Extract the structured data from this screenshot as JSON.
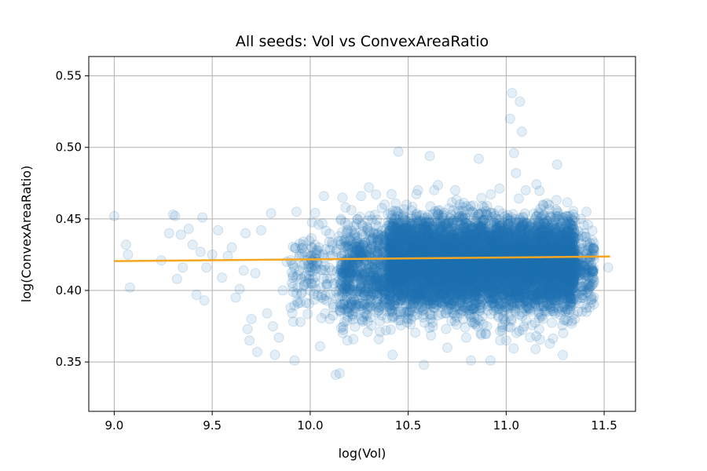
{
  "chart_data": {
    "type": "scatter",
    "title": "All seeds: Vol vs ConvexAreaRatio",
    "xlabel": "log(Vol)",
    "ylabel": "log(ConvexAreaRatio)",
    "xlim": [
      8.87,
      11.66
    ],
    "ylim": [
      0.3155,
      0.5635
    ],
    "xticks": [
      "9.0",
      "9.5",
      "10.0",
      "10.5",
      "11.0",
      "11.5"
    ],
    "yticks": [
      "0.35",
      "0.40",
      "0.45",
      "0.50",
      "0.55"
    ],
    "grid": true,
    "point_color": "#1f77b4",
    "point_alpha": 0.12,
    "fit_line_color": "#f5a623",
    "fit_line": {
      "x": [
        9.0,
        11.53
      ],
      "y": [
        0.4205,
        0.4237
      ]
    },
    "series": [
      {
        "type": "scatter",
        "points": [
          [
            9.0,
            0.452
          ],
          [
            9.06,
            0.432
          ],
          [
            9.07,
            0.425
          ],
          [
            9.08,
            0.402
          ],
          [
            9.24,
            0.421
          ],
          [
            9.28,
            0.44
          ],
          [
            9.3,
            0.453
          ],
          [
            9.31,
            0.452
          ],
          [
            9.32,
            0.408
          ],
          [
            9.34,
            0.439
          ],
          [
            9.35,
            0.416
          ],
          [
            9.38,
            0.443
          ],
          [
            9.4,
            0.432
          ],
          [
            9.42,
            0.397
          ],
          [
            9.44,
            0.427
          ],
          [
            9.45,
            0.451
          ],
          [
            9.46,
            0.393
          ],
          [
            9.47,
            0.416
          ],
          [
            9.5,
            0.425
          ],
          [
            9.53,
            0.442
          ],
          [
            9.55,
            0.409
          ],
          [
            9.58,
            0.424
          ],
          [
            9.6,
            0.43
          ],
          [
            9.62,
            0.395
          ],
          [
            9.64,
            0.401
          ],
          [
            9.66,
            0.414
          ],
          [
            9.67,
            0.44
          ],
          [
            9.68,
            0.373
          ],
          [
            9.69,
            0.365
          ],
          [
            9.7,
            0.38
          ],
          [
            9.72,
            0.412
          ],
          [
            9.73,
            0.357
          ],
          [
            9.75,
            0.442
          ],
          [
            9.78,
            0.384
          ],
          [
            9.8,
            0.454
          ],
          [
            9.81,
            0.375
          ],
          [
            9.82,
            0.355
          ],
          [
            9.84,
            0.367
          ],
          [
            9.86,
            0.4
          ],
          [
            9.88,
            0.42
          ],
          [
            9.9,
            0.388
          ],
          [
            9.92,
            0.351
          ],
          [
            9.93,
            0.455
          ],
          [
            9.95,
            0.378
          ],
          [
            9.97,
            0.41
          ],
          [
            10.0,
            0.4
          ],
          [
            10.03,
            0.428
          ],
          [
            10.05,
            0.361
          ],
          [
            10.07,
            0.466
          ],
          [
            10.1,
            0.38
          ],
          [
            10.13,
            0.341
          ],
          [
            10.15,
            0.342
          ],
          [
            10.18,
            0.458
          ],
          [
            10.2,
            0.4
          ],
          [
            10.22,
            0.366
          ],
          [
            10.26,
            0.466
          ],
          [
            10.3,
            0.472
          ],
          [
            10.35,
            0.366
          ],
          [
            10.38,
            0.46
          ],
          [
            10.42,
            0.355
          ],
          [
            10.45,
            0.497
          ],
          [
            10.5,
            0.38
          ],
          [
            10.55,
            0.47
          ],
          [
            10.58,
            0.348
          ],
          [
            10.61,
            0.494
          ],
          [
            10.65,
            0.4
          ],
          [
            10.7,
            0.36
          ],
          [
            10.74,
            0.47
          ],
          [
            10.78,
            0.38
          ],
          [
            10.82,
            0.351
          ],
          [
            10.86,
            0.492
          ],
          [
            10.9,
            0.42
          ],
          [
            10.92,
            0.351
          ],
          [
            10.95,
            0.45
          ],
          [
            11.0,
            0.365
          ],
          [
            11.02,
            0.52
          ],
          [
            11.03,
            0.538
          ],
          [
            11.04,
            0.496
          ],
          [
            11.05,
            0.482
          ],
          [
            11.07,
            0.532
          ],
          [
            11.08,
            0.511
          ],
          [
            11.1,
            0.47
          ],
          [
            11.15,
            0.359
          ],
          [
            11.2,
            0.45
          ],
          [
            11.26,
            0.488
          ],
          [
            11.3,
            0.39
          ],
          [
            11.35,
            0.38
          ],
          [
            11.38,
            0.45
          ],
          [
            11.4,
            0.44
          ],
          [
            11.41,
            0.385
          ],
          [
            11.42,
            0.398
          ],
          [
            11.45,
            0.428
          ],
          [
            11.52,
            0.416
          ]
        ]
      }
    ],
    "dense_cloud": [
      {
        "x_range": [
          9.9,
          10.15
        ],
        "y_range": [
          0.37,
          0.455
        ],
        "count": 140
      },
      {
        "x_range": [
          10.15,
          10.4
        ],
        "y_range": [
          0.365,
          0.462
        ],
        "count": 650
      },
      {
        "x_range": [
          10.4,
          11.35
        ],
        "y_range": [
          0.38,
          0.46
        ],
        "count": 6500
      },
      {
        "x_range": [
          10.4,
          11.35
        ],
        "y_range": [
          0.36,
          0.472
        ],
        "count": 1400
      },
      {
        "x_range": [
          11.3,
          11.45
        ],
        "y_range": [
          0.38,
          0.455
        ],
        "count": 260
      }
    ]
  }
}
